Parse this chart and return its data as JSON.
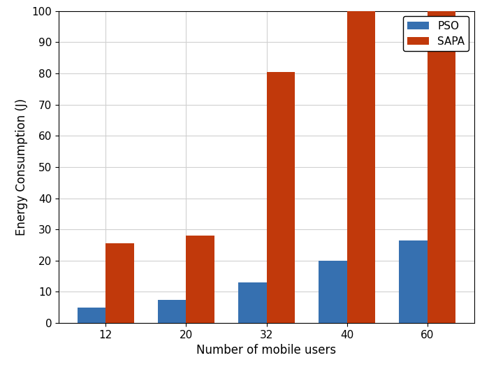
{
  "categories": [
    12,
    20,
    32,
    40,
    60
  ],
  "pso_values": [
    5,
    7.5,
    13,
    20,
    26.5
  ],
  "sapa_values": [
    25.5,
    28,
    80.5,
    100,
    100
  ],
  "pso_color": "#3670b0",
  "sapa_color": "#c1390b",
  "xlabel": "Number of mobile users",
  "ylabel": "Energy Consumption (J)",
  "ylim": [
    0,
    100
  ],
  "yticks": [
    0,
    10,
    20,
    30,
    40,
    50,
    60,
    70,
    80,
    90,
    100
  ],
  "legend_labels": [
    "PSO",
    "SAPA"
  ],
  "legend_loc": "upper right",
  "bar_width": 0.35,
  "figsize": [
    7.0,
    5.25
  ],
  "dpi": 100,
  "grid_color": "#d0d0d0",
  "spine_color": "#000000",
  "bg_color": "#ffffff",
  "tick_fontsize": 11,
  "label_fontsize": 12,
  "legend_fontsize": 11
}
